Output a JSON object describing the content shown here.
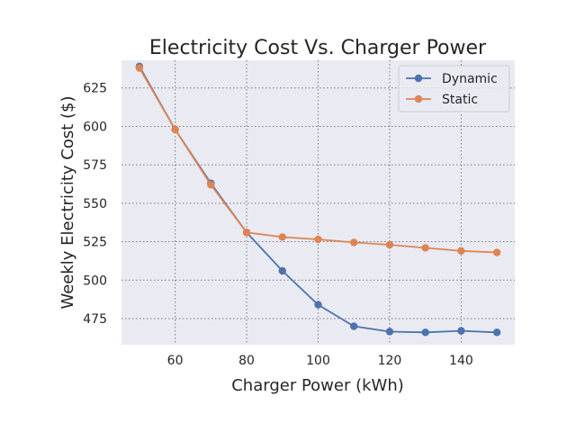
{
  "chart_data": {
    "type": "line",
    "title": "Electricity Cost Vs. Charger Power",
    "xlabel": "Charger Power (kWh)",
    "ylabel": "Weekly Electricity Cost ($)",
    "xlim": [
      45,
      155
    ],
    "ylim": [
      458,
      643
    ],
    "xticks": [
      60,
      80,
      100,
      120,
      140
    ],
    "yticks": [
      475,
      500,
      525,
      550,
      575,
      600,
      625
    ],
    "grid": true,
    "legend_position": "top-right",
    "x": [
      50,
      60,
      70,
      80,
      90,
      100,
      110,
      120,
      130,
      140,
      150
    ],
    "series": [
      {
        "name": "Dynamic",
        "color": "#4c72b0",
        "values": [
          639,
          598,
          563,
          531,
          506,
          484,
          470,
          466.5,
          466,
          467,
          466
        ]
      },
      {
        "name": "Static",
        "color": "#dd8452",
        "values": [
          638,
          598,
          562,
          531,
          528,
          526.5,
          524.5,
          523,
          521,
          519,
          518
        ]
      }
    ]
  }
}
